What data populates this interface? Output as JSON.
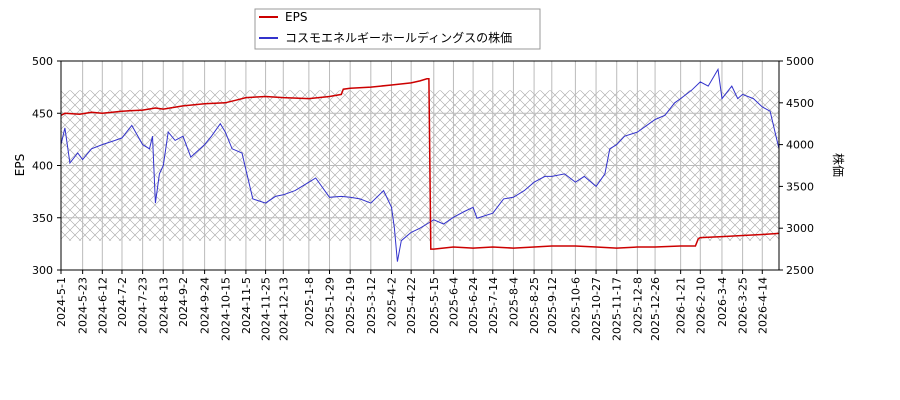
{
  "chart_data": {
    "type": "line",
    "legend": {
      "placement": "top-left (above plot)"
    },
    "grid": true,
    "hatched_band": {
      "axis": "y_right",
      "range": [
        2850,
        4650
      ]
    },
    "x_ticks": [
      "2024-5-1",
      "2024-5-23",
      "2024-6-12",
      "2024-7-2",
      "2024-7-23",
      "2024-8-13",
      "2024-9-2",
      "2024-9-24",
      "2024-10-15",
      "2024-11-5",
      "2024-11-25",
      "2024-12-13",
      "2025-1-8",
      "2025-1-29",
      "2025-2-19",
      "2025-3-12",
      "2025-4-2",
      "2025-4-22",
      "2025-5-15",
      "2025-6-4",
      "2025-6-24",
      "2025-7-14",
      "2025-8-4",
      "2025-8-25",
      "2025-9-12",
      "2025-10-6",
      "2025-10-27",
      "2025-11-17",
      "2025-12-8",
      "2025-12-26",
      "2026-1-21",
      "2026-2-10",
      "2026-3-4",
      "2026-3-25",
      "2026-4-14"
    ],
    "x_range": [
      "2024-5-1",
      "2026-5-1"
    ],
    "y_left": {
      "label": "EPS",
      "ylim": [
        300,
        500
      ],
      "ticks": [
        300,
        350,
        400,
        450,
        500
      ]
    },
    "y_right": {
      "label": "株価",
      "ylim": [
        2500,
        5000
      ],
      "ticks": [
        2500,
        3000,
        3500,
        4000,
        4500,
        5000
      ]
    },
    "series": [
      {
        "name": "EPS",
        "axis": "left",
        "color": "#cc0000",
        "points": [
          [
            "2024-5-1",
            448
          ],
          [
            "2024-5-5",
            450
          ],
          [
            "2024-5-20",
            449
          ],
          [
            "2024-6-1",
            451
          ],
          [
            "2024-6-12",
            450
          ],
          [
            "2024-7-2",
            452
          ],
          [
            "2024-7-23",
            453
          ],
          [
            "2024-8-5",
            455
          ],
          [
            "2024-8-13",
            454
          ],
          [
            "2024-9-2",
            457
          ],
          [
            "2024-9-24",
            459
          ],
          [
            "2024-10-15",
            460
          ],
          [
            "2024-10-28",
            463
          ],
          [
            "2024-11-5",
            465
          ],
          [
            "2024-11-25",
            466
          ],
          [
            "2024-12-13",
            465
          ],
          [
            "2025-1-8",
            464
          ],
          [
            "2025-1-29",
            466
          ],
          [
            "2025-2-10",
            468
          ],
          [
            "2025-2-12",
            473
          ],
          [
            "2025-2-19",
            474
          ],
          [
            "2025-3-12",
            475
          ],
          [
            "2025-4-2",
            477
          ],
          [
            "2025-4-22",
            479
          ],
          [
            "2025-5-1",
            481
          ],
          [
            "2025-5-8",
            483
          ],
          [
            "2025-5-10",
            483
          ],
          [
            "2025-5-12",
            320
          ],
          [
            "2025-5-15",
            320
          ],
          [
            "2025-6-4",
            322
          ],
          [
            "2025-6-24",
            321
          ],
          [
            "2025-7-14",
            322
          ],
          [
            "2025-8-4",
            321
          ],
          [
            "2025-8-25",
            322
          ],
          [
            "2025-9-12",
            323
          ],
          [
            "2025-10-6",
            323
          ],
          [
            "2025-10-27",
            322
          ],
          [
            "2025-11-17",
            321
          ],
          [
            "2025-12-8",
            322
          ],
          [
            "2025-12-26",
            322
          ],
          [
            "2026-1-21",
            323
          ],
          [
            "2026-2-5",
            323
          ],
          [
            "2026-2-8",
            330
          ],
          [
            "2026-2-10",
            331
          ],
          [
            "2026-3-4",
            332
          ],
          [
            "2026-3-25",
            333
          ],
          [
            "2026-4-14",
            334
          ],
          [
            "2026-5-1",
            335
          ]
        ]
      },
      {
        "name": "コスモエネルギーホールディングスの株価",
        "axis": "right",
        "color": "#3333cc",
        "points": [
          [
            "2024-5-1",
            4000
          ],
          [
            "2024-5-5",
            4200
          ],
          [
            "2024-5-10",
            3780
          ],
          [
            "2024-5-18",
            3900
          ],
          [
            "2024-5-23",
            3820
          ],
          [
            "2024-6-1",
            3950
          ],
          [
            "2024-6-12",
            4000
          ],
          [
            "2024-6-25",
            4050
          ],
          [
            "2024-7-2",
            4080
          ],
          [
            "2024-7-12",
            4230
          ],
          [
            "2024-7-23",
            4000
          ],
          [
            "2024-7-30",
            3950
          ],
          [
            "2024-8-2",
            4100
          ],
          [
            "2024-8-5",
            3300
          ],
          [
            "2024-8-9",
            3650
          ],
          [
            "2024-8-13",
            3750
          ],
          [
            "2024-8-18",
            4150
          ],
          [
            "2024-8-25",
            4050
          ],
          [
            "2024-9-2",
            4100
          ],
          [
            "2024-9-10",
            3850
          ],
          [
            "2024-9-24",
            4000
          ],
          [
            "2024-10-1",
            4100
          ],
          [
            "2024-10-10",
            4250
          ],
          [
            "2024-10-15",
            4150
          ],
          [
            "2024-10-22",
            3950
          ],
          [
            "2024-11-1",
            3900
          ],
          [
            "2024-11-5",
            3700
          ],
          [
            "2024-11-12",
            3350
          ],
          [
            "2024-11-25",
            3300
          ],
          [
            "2024-12-5",
            3380
          ],
          [
            "2024-12-13",
            3400
          ],
          [
            "2024-12-25",
            3450
          ],
          [
            "2025-1-8",
            3550
          ],
          [
            "2025-1-15",
            3600
          ],
          [
            "2025-1-29",
            3370
          ],
          [
            "2025-2-10",
            3380
          ],
          [
            "2025-2-19",
            3370
          ],
          [
            "2025-3-1",
            3350
          ],
          [
            "2025-3-12",
            3300
          ],
          [
            "2025-3-25",
            3450
          ],
          [
            "2025-4-2",
            3250
          ],
          [
            "2025-4-5",
            3000
          ],
          [
            "2025-4-8",
            2600
          ],
          [
            "2025-4-12",
            2850
          ],
          [
            "2025-4-22",
            2950
          ],
          [
            "2025-5-1",
            3000
          ],
          [
            "2025-5-8",
            3050
          ],
          [
            "2025-5-15",
            3100
          ],
          [
            "2025-5-25",
            3050
          ],
          [
            "2025-6-4",
            3130
          ],
          [
            "2025-6-15",
            3200
          ],
          [
            "2025-6-24",
            3250
          ],
          [
            "2025-6-28",
            3120
          ],
          [
            "2025-7-14",
            3180
          ],
          [
            "2025-7-25",
            3350
          ],
          [
            "2025-8-4",
            3370
          ],
          [
            "2025-8-15",
            3450
          ],
          [
            "2025-8-25",
            3550
          ],
          [
            "2025-9-5",
            3620
          ],
          [
            "2025-9-12",
            3620
          ],
          [
            "2025-9-25",
            3650
          ],
          [
            "2025-10-6",
            3550
          ],
          [
            "2025-10-15",
            3620
          ],
          [
            "2025-10-27",
            3500
          ],
          [
            "2025-11-5",
            3650
          ],
          [
            "2025-11-10",
            3950
          ],
          [
            "2025-11-17",
            4000
          ],
          [
            "2025-11-25",
            4100
          ],
          [
            "2025-12-8",
            4150
          ],
          [
            "2025-12-20",
            4250
          ],
          [
            "2025-12-26",
            4300
          ],
          [
            "2026-1-5",
            4350
          ],
          [
            "2026-1-15",
            4500
          ],
          [
            "2026-1-21",
            4550
          ],
          [
            "2026-2-1",
            4650
          ],
          [
            "2026-2-10",
            4750
          ],
          [
            "2026-2-18",
            4700
          ],
          [
            "2026-2-28",
            4900
          ],
          [
            "2026-3-4",
            4550
          ],
          [
            "2026-3-14",
            4700
          ],
          [
            "2026-3-20",
            4550
          ],
          [
            "2026-3-25",
            4600
          ],
          [
            "2026-4-5",
            4550
          ],
          [
            "2026-4-14",
            4450
          ],
          [
            "2026-4-22",
            4400
          ],
          [
            "2026-4-28",
            4100
          ],
          [
            "2026-5-1",
            3950
          ]
        ]
      }
    ]
  }
}
